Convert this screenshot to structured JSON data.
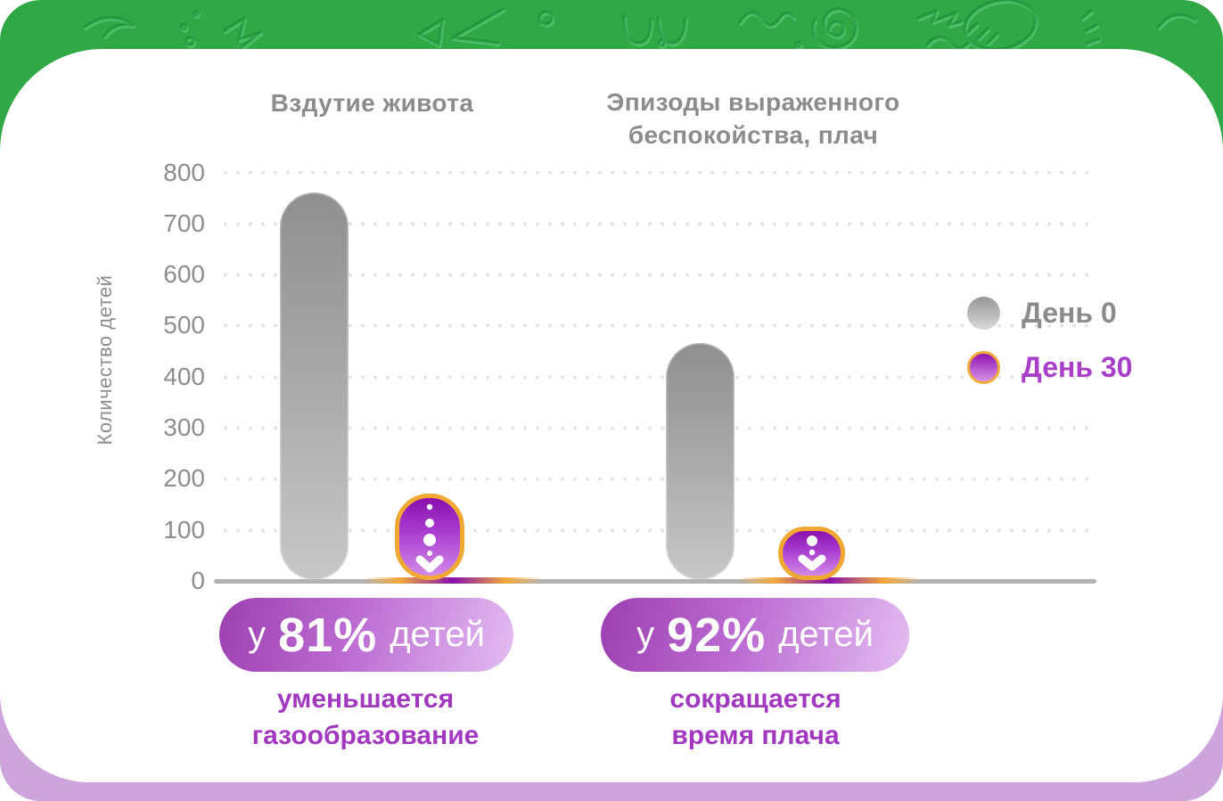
{
  "frame": {
    "top_band_color": "#2fa845",
    "bottom_band_color": "#cda4dc",
    "card_color": "#ffffff"
  },
  "chart_data": {
    "type": "bar",
    "ylabel": "Количество детей",
    "ylim": [
      0,
      800
    ],
    "y_tick_step": 100,
    "y_ticks": [
      "800",
      "700",
      "600",
      "500",
      "400",
      "300",
      "200",
      "100",
      "0"
    ],
    "grid": "horizontal dotted",
    "legend_position": "right",
    "legend": [
      {
        "label": "День 0",
        "color": "#9e9e9e"
      },
      {
        "label": "День 30",
        "color": "#a62fc4",
        "border_color": "#f2a93b"
      }
    ],
    "charts": [
      {
        "title": "Вздутие живота",
        "categories": [
          "День 0",
          "День 30"
        ],
        "values": [
          760,
          170
        ],
        "callout": {
          "prefix": "у",
          "value": "81%",
          "suffix": "детей"
        },
        "caption": "уменьшается\nгазообразование"
      },
      {
        "title": "Эпизоды выраженного\nбеспокойства, плач",
        "categories": [
          "День 0",
          "День 30"
        ],
        "values": [
          465,
          105
        ],
        "callout": {
          "prefix": "у",
          "value": "92%",
          "suffix": "детей"
        },
        "caption": "сокращается\nвремя плача"
      }
    ],
    "bar_colors": {
      "day0": "gray gradient",
      "day30": "purple gradient with orange border"
    }
  }
}
